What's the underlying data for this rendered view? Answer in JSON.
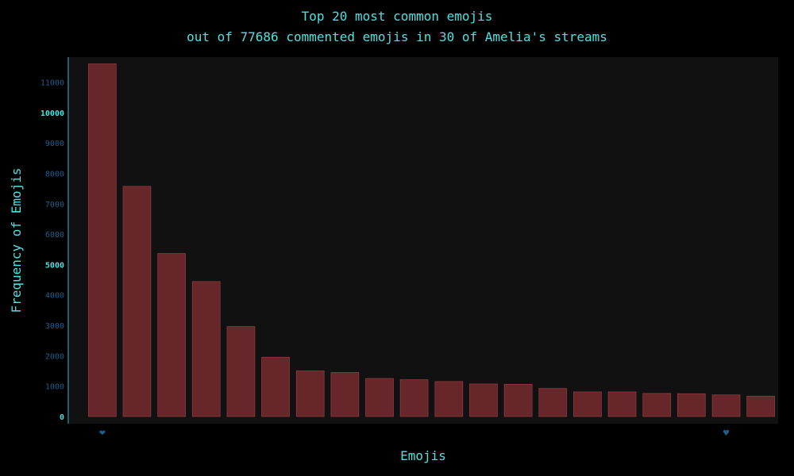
{
  "chart_data": {
    "type": "bar",
    "title": "Top 20 most common emojis",
    "subtitle": "out of 77686 commented emojis in 30 of Amelia's streams",
    "xlabel": "Emojis",
    "ylabel": "Frequency of Emojis",
    "categories": [
      "❤",
      "",
      "",
      "",
      "",
      "",
      "",
      "",
      "",
      "",
      "",
      "",
      "",
      "",
      "",
      "",
      "",
      "",
      "♥",
      ""
    ],
    "values": [
      11600,
      7570,
      5360,
      4440,
      2960,
      1950,
      1500,
      1450,
      1250,
      1210,
      1150,
      1070,
      1060,
      920,
      810,
      810,
      760,
      750,
      710,
      670
    ],
    "ylim": [
      0,
      11800
    ],
    "yticks": [
      0,
      1000,
      2000,
      3000,
      4000,
      5000,
      6000,
      7000,
      8000,
      9000,
      10000,
      11000
    ],
    "major_ticks": [
      0,
      5000,
      10000
    ],
    "grid": false,
    "colors": {
      "background": "#000000",
      "plot_background": "#111111",
      "bar_fill": "#66262a",
      "bar_stroke": "#8a3a3e",
      "text": "#4fe0e0",
      "minor_tick_text": "#1f5f8b",
      "axis_line": "#2a7f8a"
    }
  }
}
